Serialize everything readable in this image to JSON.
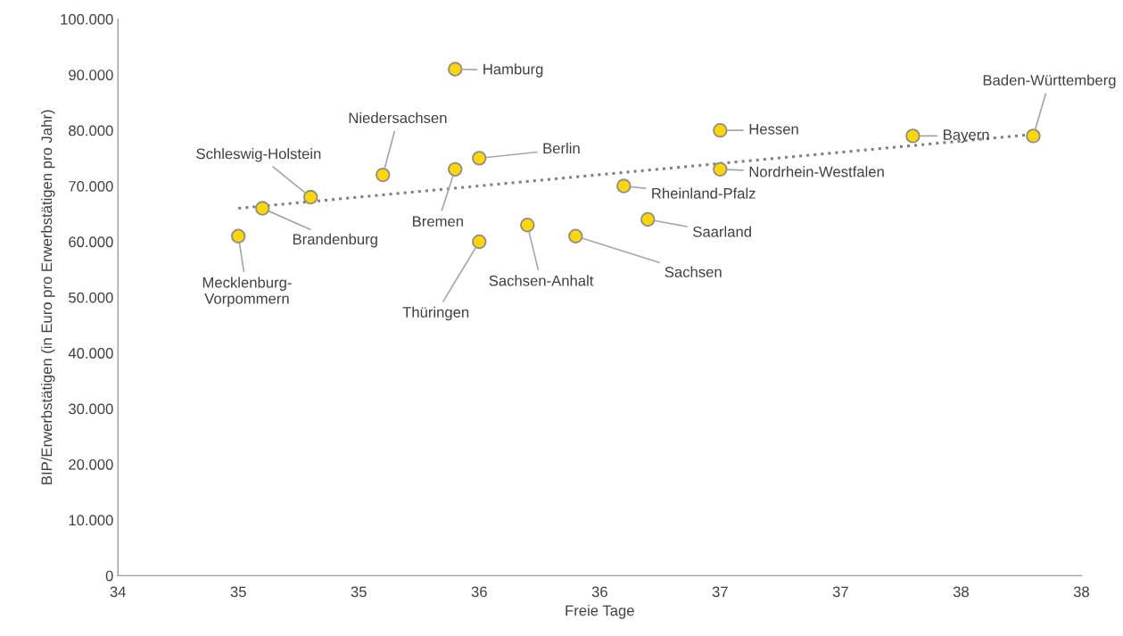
{
  "chart_data": {
    "type": "scatter",
    "xlabel": "Freie Tage",
    "ylabel": "BIP/Erwerbstätigen (in Euro pro Erwerbstätigen pro Jahr)",
    "series": [
      {
        "color": "#ffd700",
        "marker": "circle",
        "x": [
          34.5,
          34.6,
          34.8,
          35.1,
          35.4,
          35.4,
          35.5,
          35.5,
          35.7,
          35.9,
          36.1,
          36.2,
          36.5,
          36.5,
          37.3,
          37.8
        ],
        "values": [
          61000,
          66000,
          68000,
          72000,
          91000,
          73000,
          75000,
          60000,
          63000,
          61000,
          70000,
          64000,
          80000,
          73000,
          79000,
          79000
        ]
      },
      {
        "type": "line",
        "color": "#7f7f7f",
        "line_style": "dotted",
        "marker": "none",
        "x": [
          34.5,
          37.8
        ],
        "values": [
          66000,
          79300
        ]
      }
    ],
    "annotations": [
      {
        "text": "Mecklenburg-\nVorpommern",
        "x": 34.5,
        "y": 61000
      },
      {
        "text": "Brandenburg",
        "x": 34.6,
        "y": 66000
      },
      {
        "text": "Schleswig-Holstein",
        "x": 34.8,
        "y": 68000
      },
      {
        "text": "Niedersachsen",
        "x": 35.1,
        "y": 72000
      },
      {
        "text": "Hamburg",
        "x": 35.4,
        "y": 91000
      },
      {
        "text": "Bremen",
        "x": 35.4,
        "y": 73000
      },
      {
        "text": "Berlin",
        "x": 35.5,
        "y": 75000
      },
      {
        "text": "Thüringen",
        "x": 35.5,
        "y": 60000
      },
      {
        "text": "Sachsen-Anhalt",
        "x": 35.7,
        "y": 63000
      },
      {
        "text": "Sachsen",
        "x": 35.9,
        "y": 61000
      },
      {
        "text": "Rheinland-Pfalz",
        "x": 36.1,
        "y": 70000
      },
      {
        "text": "Saarland",
        "x": 36.2,
        "y": 64000
      },
      {
        "text": "Hessen",
        "x": 36.5,
        "y": 80000
      },
      {
        "text": "Nordrhein-Westfalen",
        "x": 36.5,
        "y": 73000
      },
      {
        "text": "Bayern",
        "x": 37.3,
        "y": 79000
      },
      {
        "text": "Baden-Württemberg",
        "x": 37.8,
        "y": 79000
      }
    ],
    "xlim": [
      34,
      38
    ],
    "xticks": [
      {
        "value": 34,
        "label": "34"
      },
      {
        "value": 34.5,
        "label": "35"
      },
      {
        "value": 35,
        "label": "35"
      },
      {
        "value": 35.5,
        "label": "36"
      },
      {
        "value": 36,
        "label": "36"
      },
      {
        "value": 36.5,
        "label": "37"
      },
      {
        "value": 37,
        "label": "37"
      },
      {
        "value": 37.5,
        "label": "38"
      },
      {
        "value": 38,
        "label": "38"
      }
    ],
    "ylim": [
      0,
      100000
    ],
    "yticks": [
      {
        "value": 0,
        "label": "0"
      },
      {
        "value": 10000,
        "label": "10.000"
      },
      {
        "value": 20000,
        "label": "20.000"
      },
      {
        "value": 30000,
        "label": "30.000"
      },
      {
        "value": 40000,
        "label": "40.000"
      },
      {
        "value": 50000,
        "label": "50.000"
      },
      {
        "value": 60000,
        "label": "60.000"
      },
      {
        "value": 70000,
        "label": "70.000"
      },
      {
        "value": 80000,
        "label": "80.000"
      },
      {
        "value": 90000,
        "label": "90.000"
      },
      {
        "value": 100000,
        "label": "100.000"
      }
    ],
    "grid": false,
    "legend": false
  }
}
